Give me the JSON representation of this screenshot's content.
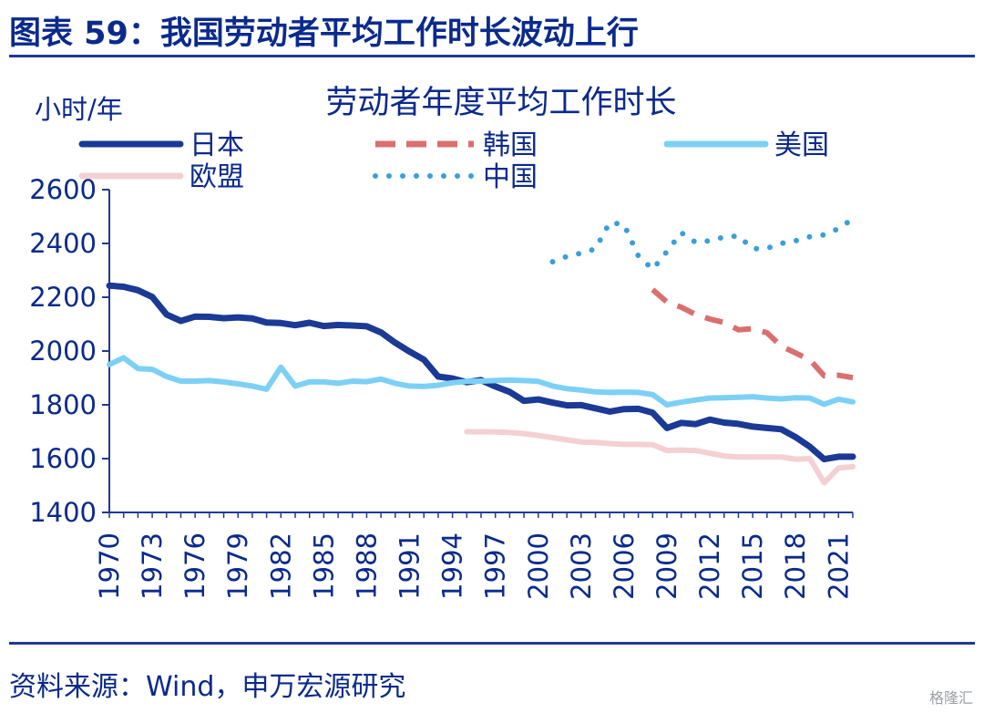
{
  "figure": {
    "title": "图表 59：我国劳动者平均工作时长波动上行",
    "source": "资料来源：Wind，申万宏源研究",
    "watermark": "格隆汇"
  },
  "colors": {
    "japan": "#1a3a95",
    "korea": "#d9706f",
    "usa": "#7dd0f5",
    "eu": "#f4d0d2",
    "china": "#3a9fd9",
    "text": "#0a2a8c",
    "axis": "#1f3a93"
  },
  "chart_data": {
    "type": "line",
    "title": "劳动者年度平均工作时长",
    "ylabel": "小时/年",
    "xlabel": "",
    "ylim": [
      1400,
      2600
    ],
    "yticks": [
      1400,
      1600,
      1800,
      2000,
      2200,
      2400,
      2600
    ],
    "xlim": [
      1970,
      2022
    ],
    "xticks": [
      "1970",
      "1973",
      "1976",
      "1979",
      "1982",
      "1985",
      "1988",
      "1991",
      "1994",
      "1997",
      "2000",
      "2003",
      "2006",
      "2009",
      "2012",
      "2015",
      "2018",
      "2021"
    ],
    "series": [
      {
        "name": "日本",
        "key": "japan",
        "style": "solid",
        "x": [
          1970,
          1971,
          1972,
          1973,
          1974,
          1975,
          1976,
          1977,
          1978,
          1979,
          1980,
          1981,
          1982,
          1983,
          1984,
          1985,
          1986,
          1987,
          1988,
          1989,
          1990,
          1991,
          1992,
          1993,
          1994,
          1995,
          1996,
          1997,
          1998,
          1999,
          2000,
          2001,
          2002,
          2003,
          2004,
          2005,
          2006,
          2007,
          2008,
          2009,
          2010,
          2011,
          2012,
          2013,
          2014,
          2015,
          2016,
          2017,
          2018,
          2019,
          2020,
          2021,
          2022
        ],
        "y": [
          2243,
          2239,
          2226,
          2201,
          2136,
          2112,
          2128,
          2127,
          2122,
          2125,
          2121,
          2106,
          2104,
          2096,
          2105,
          2093,
          2097,
          2095,
          2092,
          2069,
          2031,
          1998,
          1968,
          1905,
          1898,
          1884,
          1892,
          1868,
          1848,
          1815,
          1820,
          1808,
          1798,
          1799,
          1787,
          1775,
          1784,
          1785,
          1771,
          1714,
          1733,
          1728,
          1745,
          1734,
          1729,
          1719,
          1714,
          1709,
          1680,
          1644,
          1598,
          1607,
          1607
        ]
      },
      {
        "name": "韩国",
        "key": "korea",
        "style": "dashed",
        "x": [
          2008,
          2009,
          2010,
          2011,
          2012,
          2013,
          2014,
          2015,
          2016,
          2017,
          2018,
          2019,
          2020,
          2021,
          2022
        ],
        "y": [
          2228,
          2182,
          2163,
          2136,
          2119,
          2106,
          2079,
          2083,
          2068,
          2018,
          1993,
          1967,
          1908,
          1910,
          1901
        ]
      },
      {
        "name": "美国",
        "key": "usa",
        "style": "solid",
        "x": [
          1970,
          1971,
          1972,
          1973,
          1974,
          1975,
          1976,
          1977,
          1978,
          1979,
          1980,
          1981,
          1982,
          1983,
          1984,
          1985,
          1986,
          1987,
          1988,
          1989,
          1990,
          1991,
          1992,
          1993,
          1994,
          1995,
          1996,
          1997,
          1998,
          1999,
          2000,
          2001,
          2002,
          2003,
          2004,
          2005,
          2006,
          2007,
          2008,
          2009,
          2010,
          2011,
          2012,
          2013,
          2014,
          2015,
          2016,
          2017,
          2018,
          2019,
          2020,
          2021,
          2022
        ],
        "y": [
          1950,
          1975,
          1935,
          1932,
          1905,
          1888,
          1888,
          1890,
          1885,
          1878,
          1870,
          1858,
          1940,
          1870,
          1885,
          1885,
          1880,
          1888,
          1886,
          1896,
          1880,
          1870,
          1868,
          1873,
          1882,
          1887,
          1888,
          1890,
          1892,
          1890,
          1887,
          1870,
          1860,
          1855,
          1848,
          1846,
          1847,
          1846,
          1838,
          1800,
          1810,
          1818,
          1825,
          1826,
          1828,
          1830,
          1825,
          1822,
          1826,
          1825,
          1802,
          1821,
          1811
        ]
      },
      {
        "name": "欧盟",
        "key": "eu",
        "style": "solid",
        "x": [
          1995,
          1996,
          1997,
          1998,
          1999,
          2000,
          2001,
          2002,
          2003,
          2004,
          2005,
          2006,
          2007,
          2008,
          2009,
          2010,
          2011,
          2012,
          2013,
          2014,
          2015,
          2016,
          2017,
          2018,
          2019,
          2020,
          2021,
          2022
        ],
        "y": [
          1700,
          1700,
          1699,
          1697,
          1693,
          1686,
          1678,
          1670,
          1662,
          1660,
          1656,
          1653,
          1653,
          1652,
          1630,
          1632,
          1630,
          1620,
          1610,
          1606,
          1606,
          1606,
          1606,
          1598,
          1600,
          1510,
          1565,
          1570
        ]
      },
      {
        "name": "中国",
        "key": "china",
        "style": "dotted",
        "x": [
          2001,
          2002,
          2003,
          2004,
          2005,
          2006,
          2007,
          2008,
          2009,
          2010,
          2011,
          2012,
          2013,
          2014,
          2015,
          2016,
          2017,
          2018,
          2019,
          2020,
          2021,
          2022
        ],
        "y": [
          2332,
          2352,
          2364,
          2380,
          2478,
          2470,
          2354,
          2304,
          2370,
          2440,
          2404,
          2410,
          2424,
          2428,
          2380,
          2382,
          2400,
          2410,
          2425,
          2432,
          2455,
          2492
        ]
      }
    ]
  }
}
